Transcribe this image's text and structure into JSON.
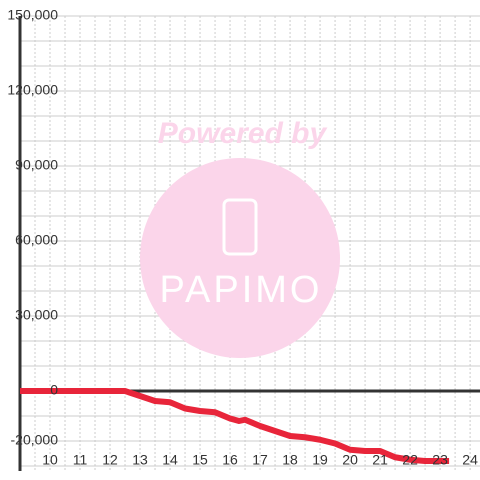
{
  "chart_data": {
    "type": "line",
    "watermark": {
      "top": "Powered by",
      "bottom": "PAPIMO"
    },
    "x": [
      9,
      12.5,
      13,
      13.5,
      14,
      14.5,
      15,
      15.5,
      16,
      16.3,
      16.5,
      17,
      17.5,
      18,
      18.5,
      19,
      19.5,
      20,
      20.5,
      21,
      21.5,
      22,
      22.5,
      23,
      23.3
    ],
    "series": [
      {
        "color": "#e8253a",
        "values": [
          0,
          0,
          -2000,
          -4000,
          -4500,
          -7000,
          -8000,
          -8500,
          -11000,
          -12000,
          -11500,
          -14000,
          -16000,
          -18000,
          -18500,
          -19500,
          -21000,
          -23500,
          -24000,
          -24000,
          -26500,
          -27500,
          -28000,
          -28000,
          -28000
        ]
      }
    ],
    "xlim": [
      9,
      24.33
    ],
    "xticks": [
      10,
      11,
      12,
      13,
      14,
      15,
      16,
      17,
      18,
      19,
      20,
      21,
      22,
      23,
      24
    ],
    "ylim": [
      -32000,
      150000
    ],
    "yticks": [
      {
        "value": -20000,
        "label": "-20,000"
      },
      0,
      {
        "value": 30000,
        "label": "30,000"
      },
      {
        "value": 60000,
        "label": "60,000"
      },
      {
        "value": 90000,
        "label": "90,000"
      },
      {
        "value": 120000,
        "label": "120,000"
      },
      {
        "value": 150000,
        "label": "150,000"
      }
    ],
    "minor_yticks": [
      -30000,
      -10000,
      10000,
      20000,
      40000,
      50000,
      70000,
      80000,
      100000,
      110000,
      130000,
      140000
    ],
    "minor_xticks": [
      9.5,
      10.5,
      11.5,
      12.5,
      13.5,
      14.5,
      15.5,
      16.5,
      17.5,
      18.5,
      19.5,
      20.5,
      21.5,
      22.5,
      23.5
    ],
    "grid": true
  }
}
